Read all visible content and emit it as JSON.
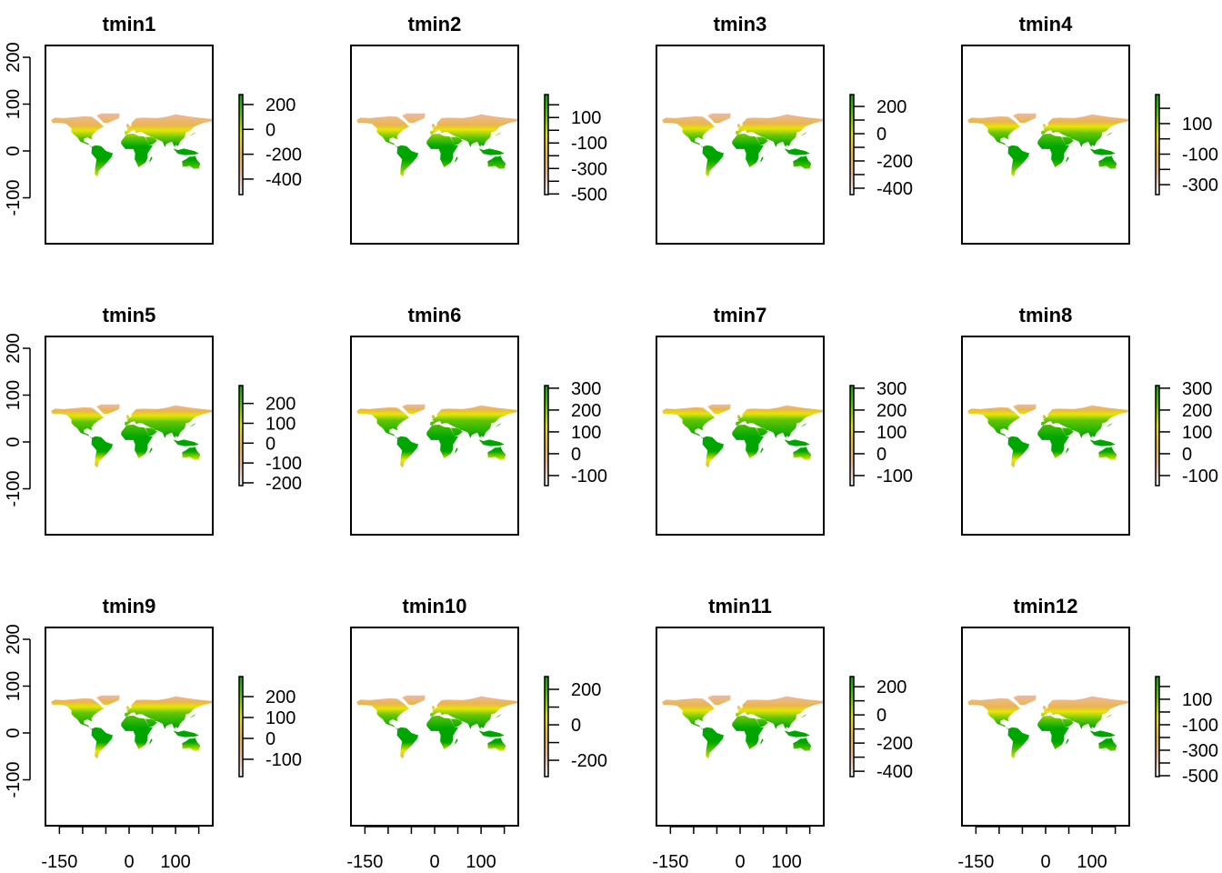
{
  "colors": {
    "palette": [
      "#00A600",
      "#63C600",
      "#E6E600",
      "#EAB64E",
      "#EEB99F",
      "#F2F2F2"
    ],
    "axis": "#000000"
  },
  "chart_data": {
    "type": "heatmap",
    "layout": "3x4 grid of raster maps",
    "x_axis": {
      "ticks": [
        -150,
        -100,
        -50,
        0,
        50,
        100,
        150
      ],
      "labels": [
        "-150",
        "0",
        "100"
      ],
      "range": [
        -180,
        180
      ]
    },
    "y_axis": {
      "ticks": [
        -100,
        0,
        100,
        200
      ],
      "labels": [
        "-100",
        "0",
        "100",
        "200"
      ],
      "range": [
        -198,
        225
      ]
    },
    "panels": [
      {
        "title": "tmin1",
        "legend_range": [
          -525,
          280
        ],
        "legend_ticks": [
          200,
          0,
          -200,
          -400
        ],
        "legend_labels": [
          "200",
          "0",
          "-200",
          "-400"
        ]
      },
      {
        "title": "tmin2",
        "legend_range": [
          -505,
          280
        ],
        "legend_ticks": [
          200,
          100,
          0,
          -100,
          -200,
          -300,
          -400,
          -500
        ],
        "legend_labels": [
          "100",
          "-100",
          "-300",
          "-500"
        ]
      },
      {
        "title": "tmin3",
        "legend_range": [
          -447,
          287
        ],
        "legend_ticks": [
          200,
          100,
          0,
          -100,
          -200,
          -300,
          -400
        ],
        "legend_labels": [
          "200",
          "0",
          "-200",
          "-400"
        ]
      },
      {
        "title": "tmin4",
        "legend_range": [
          -365,
          290
        ],
        "legend_ticks": [
          200,
          100,
          0,
          -100,
          -200,
          -300
        ],
        "legend_labels": [
          "100",
          "-100",
          "-300"
        ]
      },
      {
        "title": "tmin5",
        "legend_range": [
          -214,
          290
        ],
        "legend_ticks": [
          200,
          100,
          0,
          -100,
          -200
        ],
        "legend_labels": [
          "200",
          "100",
          "0",
          "-100",
          "-200"
        ]
      },
      {
        "title": "tmin6",
        "legend_range": [
          -146,
          312
        ],
        "legend_ticks": [
          300,
          200,
          100,
          0,
          -100
        ],
        "legend_labels": [
          "300",
          "200",
          "100",
          "0",
          "-100"
        ]
      },
      {
        "title": "tmin7",
        "legend_range": [
          -146,
          312
        ],
        "legend_ticks": [
          300,
          200,
          100,
          0,
          -100
        ],
        "legend_labels": [
          "300",
          "200",
          "100",
          "0",
          "-100"
        ]
      },
      {
        "title": "tmin8",
        "legend_range": [
          -146,
          312
        ],
        "legend_ticks": [
          300,
          200,
          100,
          0,
          -100
        ],
        "legend_labels": [
          "300",
          "200",
          "100",
          "0",
          "-100"
        ]
      },
      {
        "title": "tmin9",
        "legend_range": [
          -183,
          296
        ],
        "legend_ticks": [
          200,
          100,
          0,
          -100
        ],
        "legend_labels": [
          "200",
          "100",
          "0",
          "-100"
        ]
      },
      {
        "title": "tmin10",
        "legend_range": [
          -292,
          272
        ],
        "legend_ticks": [
          200,
          100,
          0,
          -100,
          -200
        ],
        "legend_labels": [
          "200",
          "0",
          "-200"
        ]
      },
      {
        "title": "tmin11",
        "legend_range": [
          -438,
          272
        ],
        "legend_ticks": [
          200,
          100,
          0,
          -100,
          -200,
          -300,
          -400
        ],
        "legend_labels": [
          "200",
          "0",
          "-200",
          "-400"
        ]
      },
      {
        "title": "tmin12",
        "legend_range": [
          -507,
          278
        ],
        "legend_ticks": [
          200,
          100,
          0,
          -100,
          -200,
          -300,
          -400,
          -500
        ],
        "legend_labels": [
          "100",
          "-100",
          "-300",
          "-500"
        ]
      }
    ]
  }
}
